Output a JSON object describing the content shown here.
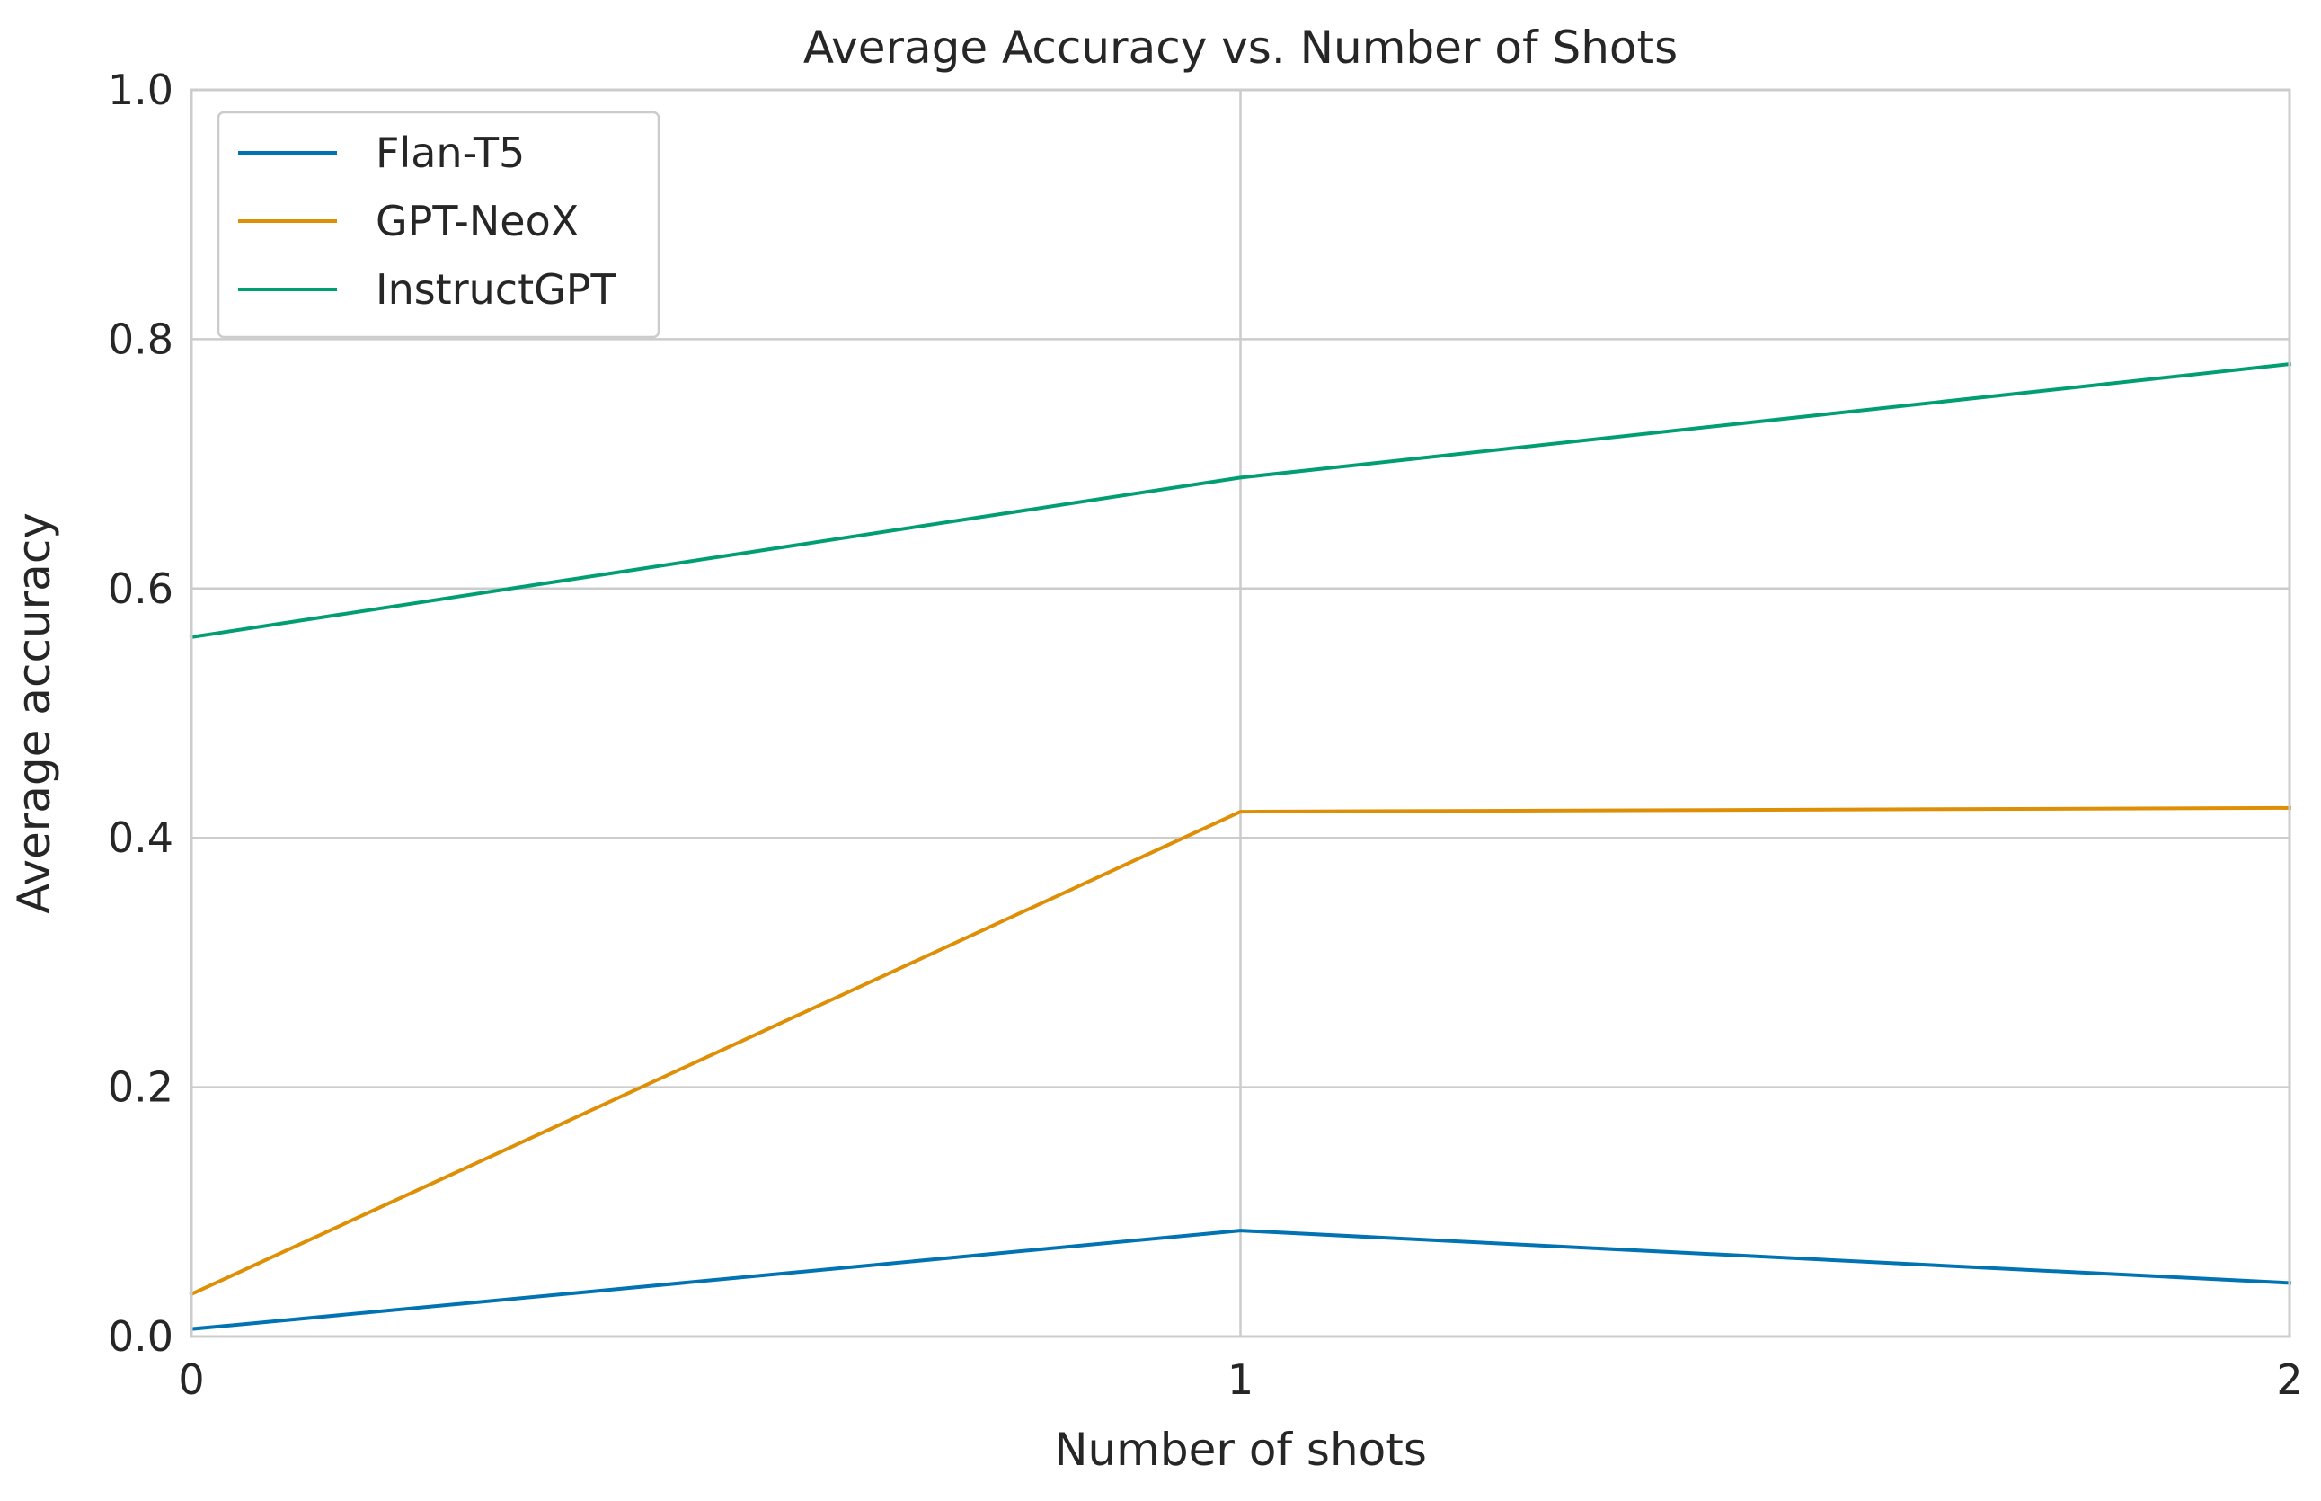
{
  "chart_data": {
    "type": "line",
    "title": "Average Accuracy vs. Number of Shots",
    "xlabel": "Number of shots",
    "ylabel": "Average accuracy",
    "x": [
      0,
      1,
      2
    ],
    "x_tick_labels": [
      "0",
      "1",
      "2"
    ],
    "y_tick_labels": [
      "0.0",
      "0.2",
      "0.4",
      "0.6",
      "0.8",
      "1.0"
    ],
    "y_ticks": [
      0.0,
      0.2,
      0.4,
      0.6,
      0.8,
      1.0
    ],
    "xlim": [
      0,
      2
    ],
    "ylim": [
      0,
      1
    ],
    "grid": true,
    "legend_position": "top-left",
    "series": [
      {
        "name": "Flan-T5",
        "color": "#0173b2",
        "values": [
          0.006,
          0.085,
          0.043
        ]
      },
      {
        "name": "GPT-NeoX",
        "color": "#de8f05",
        "values": [
          0.034,
          0.421,
          0.424
        ]
      },
      {
        "name": "InstructGPT",
        "color": "#029e73",
        "values": [
          0.561,
          0.689,
          0.78
        ]
      }
    ]
  }
}
